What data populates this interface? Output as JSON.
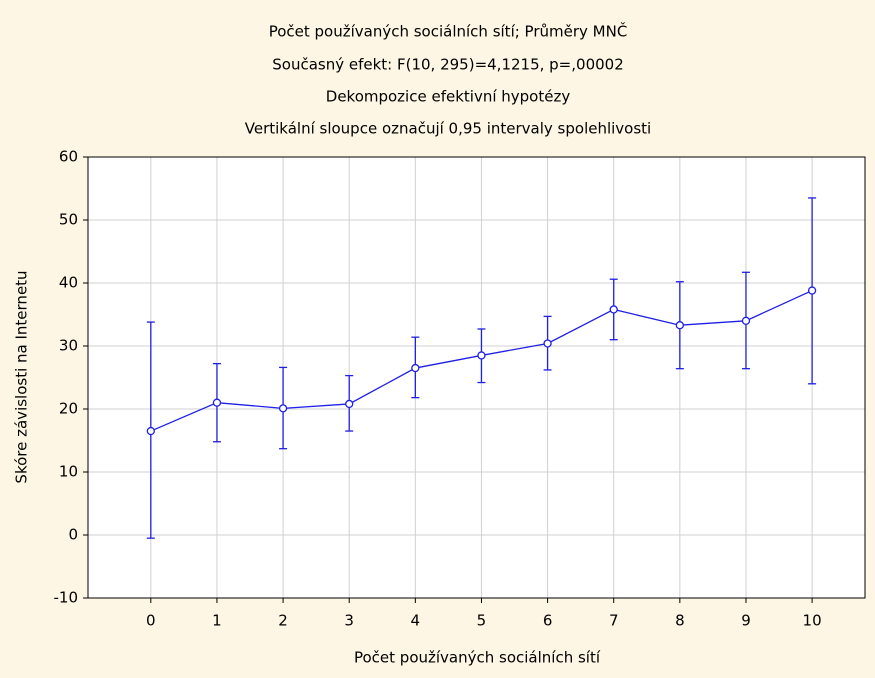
{
  "chart_data": {
    "type": "line",
    "title": "Počet používaných sociálních sítí; Průměry MNČ",
    "subtitle": [
      "Současný efekt: F(10, 295)=4,1215, p=,00002",
      "Dekompozice efektivní hypotézy",
      "Vertikální sloupce označují 0,95 intervaly spolehlivosti"
    ],
    "x_label": "Počet používaných sociálních sítí",
    "y_label": "Skóre závislosti na Internetu",
    "x": [
      0,
      1,
      2,
      3,
      4,
      5,
      6,
      7,
      8,
      9,
      10
    ],
    "series": [
      {
        "color": "#1f1fe6",
        "values": [
          16.5,
          21,
          20.1,
          20.8,
          26.5,
          28.5,
          30.4,
          35.8,
          33.3,
          34,
          38.8
        ],
        "lower": [
          -0.5,
          14.8,
          13.7,
          16.5,
          21.8,
          24.2,
          26.2,
          31,
          26.4,
          26.4,
          24
        ],
        "upper": [
          33.8,
          27.2,
          26.6,
          25.3,
          31.4,
          32.7,
          34.7,
          40.6,
          40.2,
          41.7,
          53.5
        ]
      }
    ],
    "xlim": [
      -0.95,
      10.8
    ],
    "xticks": [
      0,
      1,
      2,
      3,
      4,
      5,
      6,
      7,
      8,
      9,
      10
    ],
    "ylim": [
      -10,
      60
    ],
    "yticks": [
      -10,
      0,
      10,
      20,
      30,
      40,
      50,
      60
    ],
    "grid": true
  }
}
